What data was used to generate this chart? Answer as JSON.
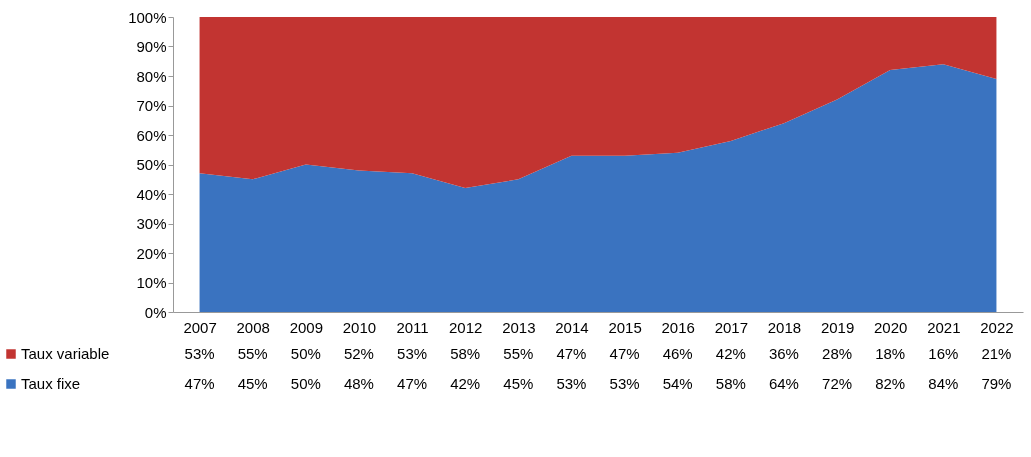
{
  "chart_data": {
    "type": "area",
    "stacked": true,
    "legend": "bottom",
    "categories": [
      "2007",
      "2008",
      "2009",
      "2010",
      "2011",
      "2012",
      "2013",
      "2014",
      "2015",
      "2016",
      "2017",
      "2018",
      "2019",
      "2020",
      "2021",
      "2022"
    ],
    "ylim": [
      0,
      100
    ],
    "yticks": [
      {
        "value": 0,
        "label": "0%"
      },
      {
        "value": 10,
        "label": "10%"
      },
      {
        "value": 20,
        "label": "20%"
      },
      {
        "value": 30,
        "label": "30%"
      },
      {
        "value": 40,
        "label": "40%"
      },
      {
        "value": 50,
        "label": "50%"
      },
      {
        "value": 60,
        "label": "60%"
      },
      {
        "value": 70,
        "label": "70%"
      },
      {
        "value": 80,
        "label": "80%"
      },
      {
        "value": 90,
        "label": "90%"
      },
      {
        "value": 100,
        "label": "100%"
      }
    ],
    "series": [
      {
        "name": "Taux fixe",
        "color": "#3a73c0",
        "values": [
          47,
          45,
          50,
          48,
          47,
          42,
          45,
          53,
          53,
          54,
          58,
          64,
          72,
          82,
          84,
          79
        ],
        "value_labels": [
          "47%",
          "45%",
          "50%",
          "48%",
          "47%",
          "42%",
          "45%",
          "53%",
          "53%",
          "54%",
          "58%",
          "64%",
          "72%",
          "82%",
          "84%",
          "79%"
        ]
      },
      {
        "name": "Taux variable",
        "color": "#c23431",
        "values": [
          53,
          55,
          50,
          52,
          53,
          58,
          55,
          47,
          47,
          46,
          42,
          36,
          28,
          18,
          16,
          21
        ],
        "value_labels": [
          "53%",
          "55%",
          "50%",
          "52%",
          "53%",
          "58%",
          "55%",
          "47%",
          "47%",
          "46%",
          "42%",
          "36%",
          "28%",
          "18%",
          "16%",
          "21%"
        ]
      }
    ]
  }
}
